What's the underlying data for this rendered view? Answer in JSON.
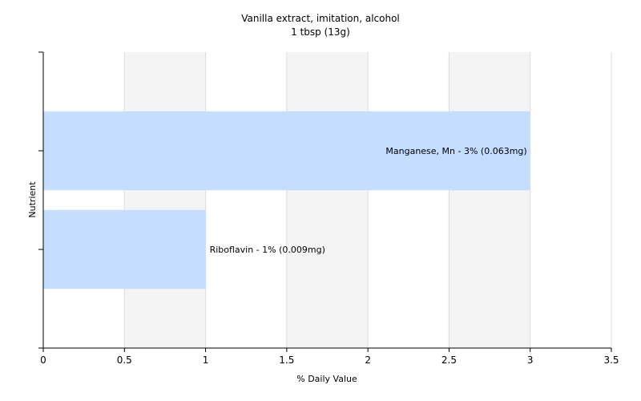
{
  "chart_data": {
    "type": "bar",
    "orientation": "horizontal",
    "title": "Vanilla extract, imitation, alcohol",
    "subtitle": "1 tbsp (13g)",
    "xlabel": "% Daily Value",
    "ylabel": "Nutrient",
    "xlim": [
      0,
      3.5
    ],
    "x_ticks": [
      0,
      0.5,
      1,
      1.5,
      2,
      2.5,
      3,
      3.5
    ],
    "x_tick_labels": [
      "0",
      "0.5",
      "1",
      "1.5",
      "2",
      "2.5",
      "3",
      "3.5"
    ],
    "grid": true,
    "bar_color": "#c5ddff",
    "categories": [
      "Manganese, Mn",
      "Riboflavin"
    ],
    "values": [
      3,
      1
    ],
    "data_labels": [
      "Manganese, Mn - 3% (0.063mg)",
      "Riboflavin - 1% (0.009mg)"
    ]
  }
}
